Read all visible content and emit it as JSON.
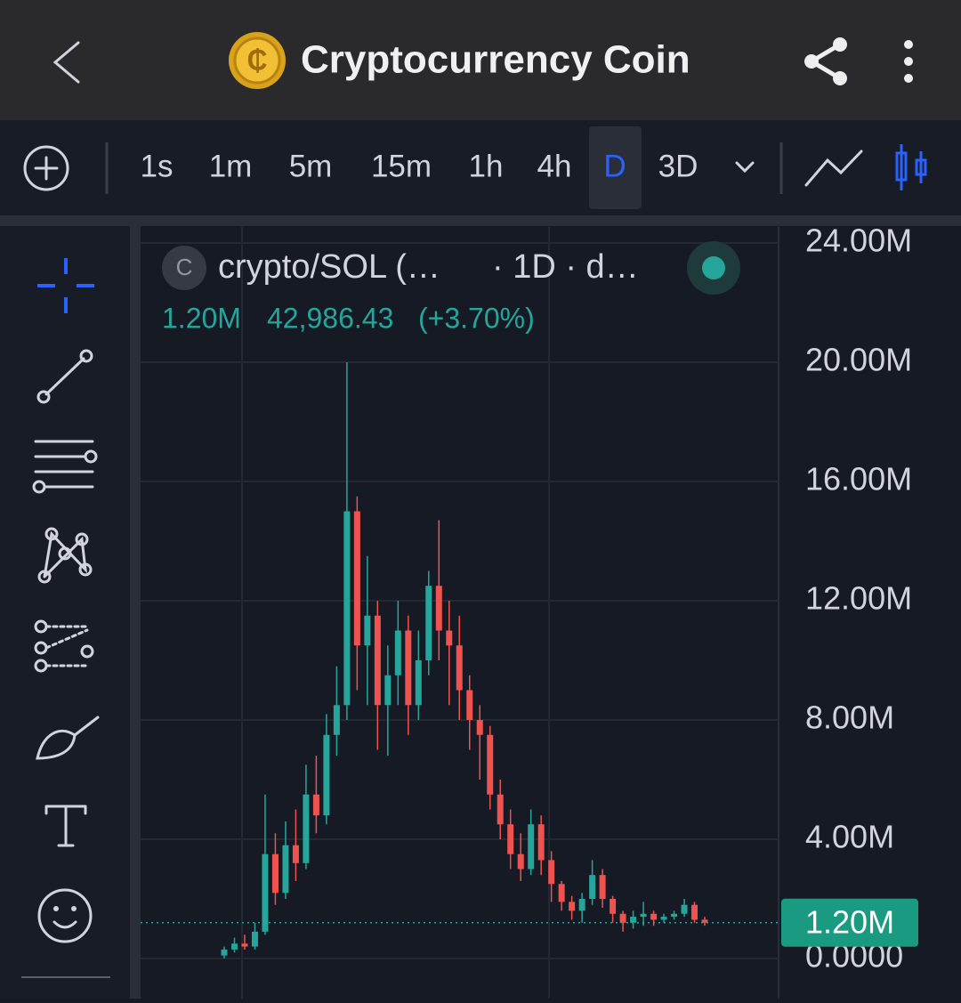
{
  "header": {
    "title": "Cryptocurrency Coin"
  },
  "toolbar": {
    "intervals": [
      "1s",
      "1m",
      "5m",
      "15m",
      "1h",
      "4h",
      "D",
      "3D"
    ],
    "active": "D"
  },
  "chart_data": {
    "type": "candlestick",
    "legend": {
      "badge": "C",
      "symbol": "crypto/SOL (…",
      "interval": "· 1D · d…",
      "price": "42,986.43",
      "change": "(+3.70%)"
    },
    "last_price": {
      "value": 1.2,
      "label": "1.20M"
    },
    "ylim": [
      0,
      24
    ],
    "yticks": [
      {
        "value": 0,
        "label": "0.0000"
      },
      {
        "value": 4,
        "label": "4.00M"
      },
      {
        "value": 8,
        "label": "8.00M"
      },
      {
        "value": 12,
        "label": "12.00M"
      },
      {
        "value": 16,
        "label": "16.00M"
      },
      {
        "value": 20,
        "label": "20.00M"
      },
      {
        "value": 24,
        "label": "24.00M"
      }
    ],
    "up_color": "#26a69a",
    "down_color": "#ef5350",
    "grid": true,
    "open": [
      0.1,
      0.3,
      0.5,
      0.4,
      0.9,
      3.5,
      2.2,
      3.8,
      3.2,
      5.5,
      4.8,
      7.5,
      8.5,
      15.0,
      10.5,
      11.5,
      8.5,
      9.5,
      11.0,
      8.5,
      10.0,
      12.5,
      11.0,
      10.5,
      9.0,
      8.0,
      7.5,
      5.5,
      4.5,
      3.5,
      3.0,
      4.5,
      3.3,
      2.5,
      1.9,
      1.6,
      2.0,
      2.8,
      2.0,
      1.5,
      1.2,
      1.4,
      1.5,
      1.3,
      1.4,
      1.5,
      1.8,
      1.3
    ],
    "high": [
      0.4,
      0.7,
      0.8,
      1.2,
      5.5,
      4.2,
      4.6,
      5.0,
      6.5,
      6.8,
      8.2,
      9.8,
      20.0,
      15.5,
      13.5,
      12.0,
      10.5,
      12.0,
      11.5,
      11.0,
      13.0,
      14.7,
      12.0,
      11.5,
      9.5,
      8.5,
      7.8,
      6.0,
      5.0,
      4.2,
      5.0,
      4.8,
      3.6,
      2.6,
      2.1,
      2.2,
      3.3,
      3.0,
      2.1,
      1.6,
      1.6,
      1.9,
      1.6,
      1.5,
      1.6,
      2.0,
      1.9,
      1.4
    ],
    "low": [
      0.0,
      0.2,
      0.3,
      0.3,
      0.8,
      1.8,
      2.0,
      2.6,
      3.0,
      4.2,
      4.5,
      6.8,
      8.0,
      9.0,
      8.5,
      7.0,
      6.8,
      8.5,
      7.5,
      8.0,
      9.5,
      10.0,
      8.5,
      8.0,
      7.0,
      6.0,
      5.0,
      4.0,
      3.0,
      2.6,
      2.8,
      2.8,
      1.9,
      1.6,
      1.3,
      1.2,
      1.8,
      1.7,
      1.2,
      0.9,
      1.0,
      1.1,
      1.1,
      1.2,
      1.3,
      1.4,
      1.2,
      1.1
    ],
    "close": [
      0.3,
      0.5,
      0.4,
      0.9,
      3.5,
      2.2,
      3.8,
      3.2,
      5.5,
      4.8,
      7.5,
      8.5,
      15.0,
      10.5,
      11.5,
      8.5,
      9.5,
      11.0,
      8.5,
      10.0,
      12.5,
      11.0,
      10.5,
      9.0,
      8.0,
      7.5,
      5.5,
      4.5,
      3.5,
      3.0,
      4.5,
      3.3,
      2.5,
      1.9,
      1.6,
      2.0,
      2.8,
      2.0,
      1.5,
      1.2,
      1.4,
      1.5,
      1.3,
      1.4,
      1.5,
      1.8,
      1.3,
      1.2
    ]
  }
}
